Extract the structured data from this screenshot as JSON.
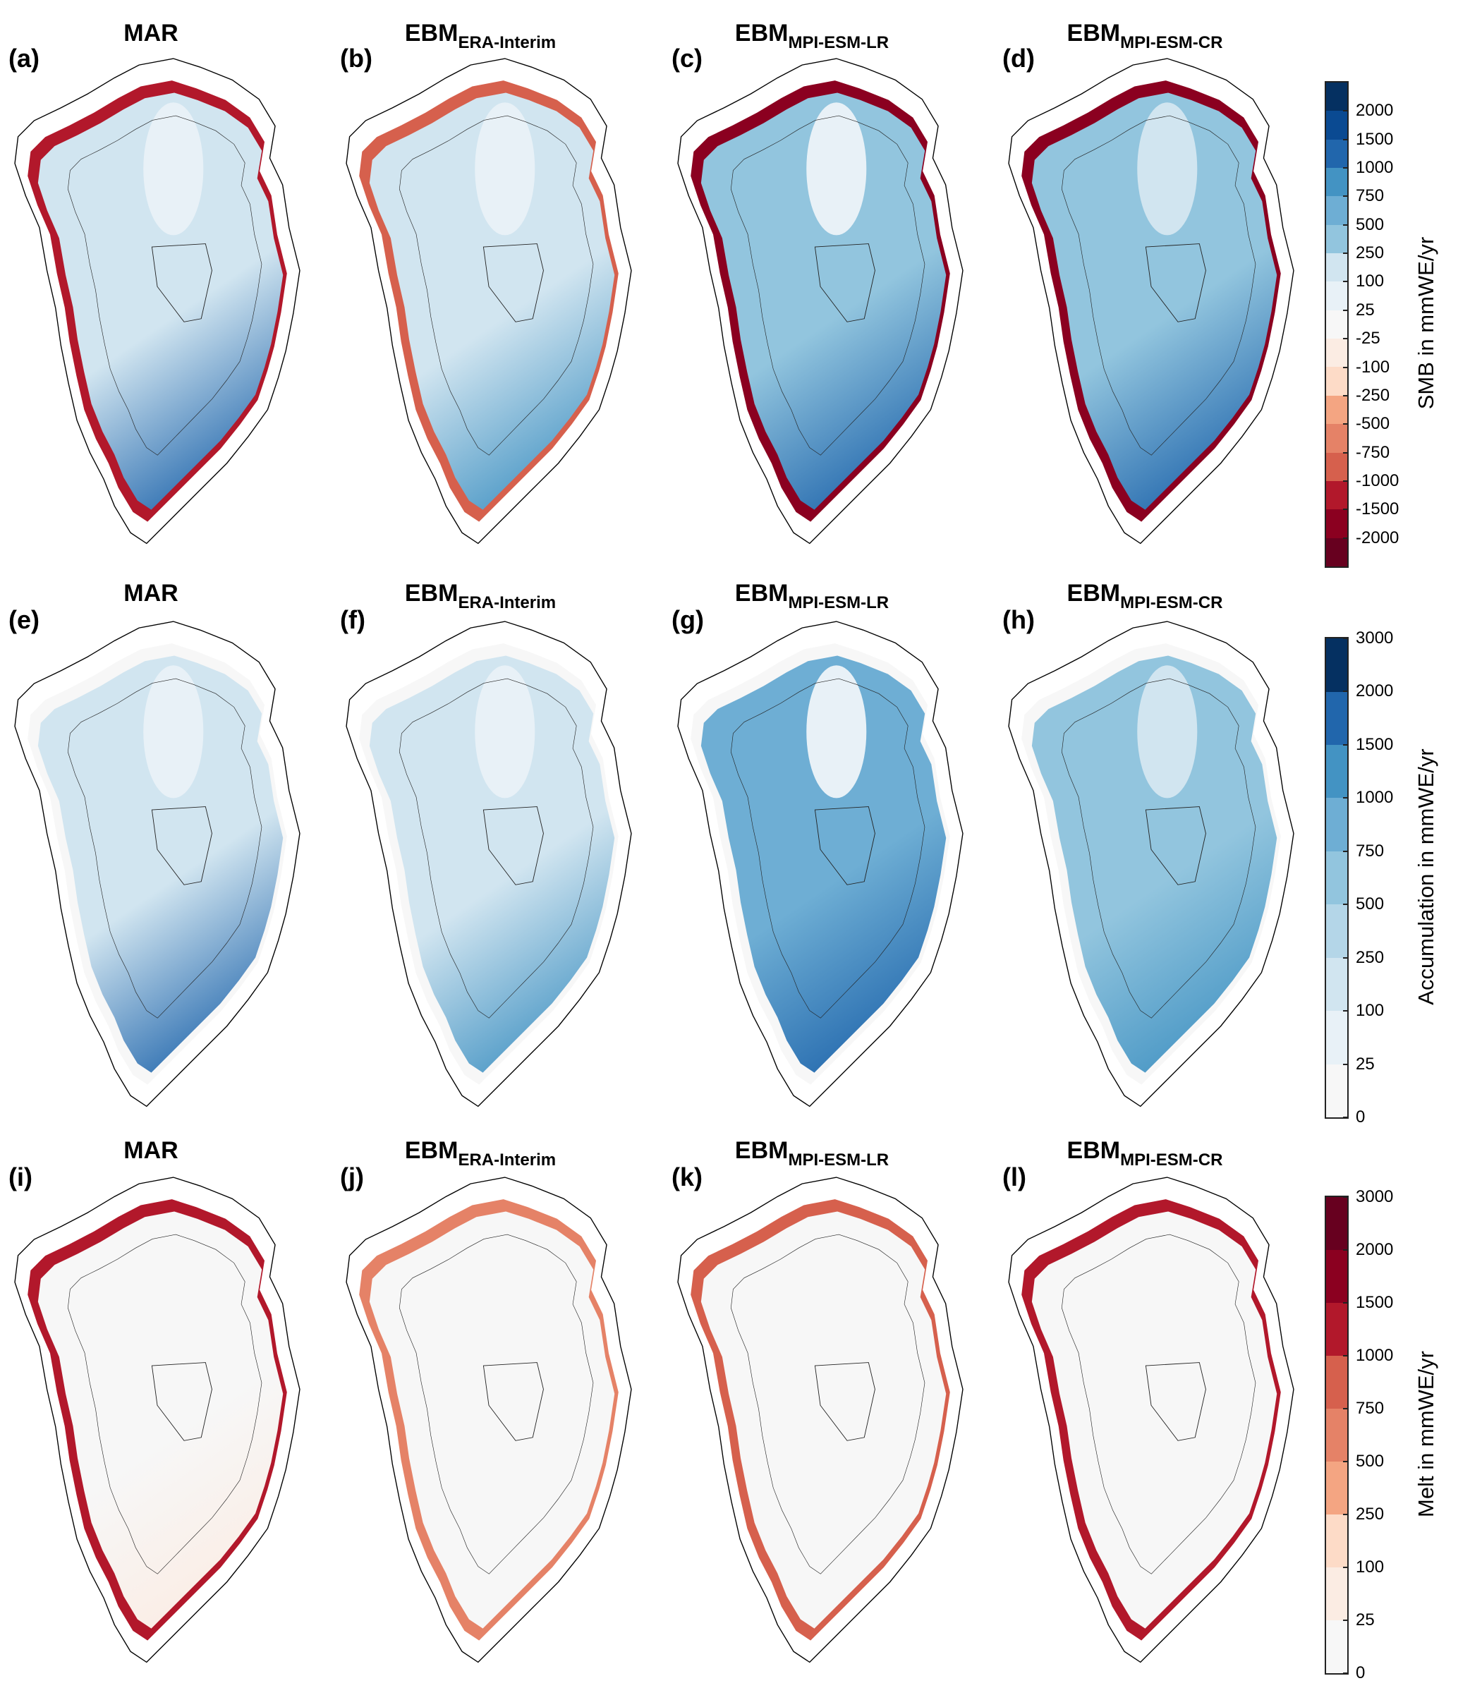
{
  "rows": [
    {
      "panels": [
        {
          "label": "(a)",
          "title": "MAR",
          "sub": "",
          "colors": {
            "edge": "#b2182b",
            "main_top": "#d1e5f0",
            "main_bottom": "#2166ac",
            "core": "#e8f1f7"
          }
        },
        {
          "label": "(b)",
          "title": "EBM",
          "sub": "ERA-Interim",
          "colors": {
            "edge": "#d6604d",
            "main_top": "#d1e5f0",
            "main_bottom": "#4393c3",
            "core": "#e8f1f7"
          }
        },
        {
          "label": "(c)",
          "title": "EBM",
          "sub": "MPI-ESM-LR",
          "colors": {
            "edge": "#8b0020",
            "main_top": "#92c5de",
            "main_bottom": "#2166ac",
            "core": "#e8f1f7"
          }
        },
        {
          "label": "(d)",
          "title": "EBM",
          "sub": "MPI-ESM-CR",
          "colors": {
            "edge": "#8b0020",
            "main_top": "#92c5de",
            "main_bottom": "#2166ac",
            "core": "#d1e5f0"
          }
        }
      ]
    },
    {
      "panels": [
        {
          "label": "(e)",
          "title": "MAR",
          "sub": "",
          "colors": {
            "edge": "#f7f7f7",
            "main_top": "#d1e5f0",
            "main_bottom": "#2166ac",
            "core": "#e8f1f7"
          }
        },
        {
          "label": "(f)",
          "title": "EBM",
          "sub": "ERA-Interim",
          "colors": {
            "edge": "#f7f7f7",
            "main_top": "#d1e5f0",
            "main_bottom": "#4393c3",
            "core": "#e8f1f7"
          }
        },
        {
          "label": "(g)",
          "title": "EBM",
          "sub": "MPI-ESM-LR",
          "colors": {
            "edge": "#f7f7f7",
            "main_top": "#6eaed4",
            "main_bottom": "#2166ac",
            "core": "#e8f1f7"
          }
        },
        {
          "label": "(h)",
          "title": "EBM",
          "sub": "MPI-ESM-CR",
          "colors": {
            "edge": "#f7f7f7",
            "main_top": "#92c5de",
            "main_bottom": "#4393c3",
            "core": "#d1e5f0"
          }
        }
      ]
    },
    {
      "panels": [
        {
          "label": "(i)",
          "title": "MAR",
          "sub": "",
          "colors": {
            "edge": "#b2182b",
            "main_top": "#f7f7f7",
            "main_bottom": "#fbece3",
            "core": "#f7f7f7"
          }
        },
        {
          "label": "(j)",
          "title": "EBM",
          "sub": "ERA-Interim",
          "colors": {
            "edge": "#e58267",
            "main_top": "#f7f7f7",
            "main_bottom": "#f7f7f7",
            "core": "#f7f7f7"
          }
        },
        {
          "label": "(k)",
          "title": "EBM",
          "sub": "MPI-ESM-LR",
          "colors": {
            "edge": "#d6604d",
            "main_top": "#f7f7f7",
            "main_bottom": "#f7f7f7",
            "core": "#f7f7f7"
          }
        },
        {
          "label": "(l)",
          "title": "EBM",
          "sub": "MPI-ESM-CR",
          "colors": {
            "edge": "#b2182b",
            "main_top": "#f7f7f7",
            "main_bottom": "#f7f7f7",
            "core": "#f7f7f7"
          }
        }
      ]
    }
  ],
  "colorbars": [
    {
      "label": "SMB in mmWE/yr",
      "tick_mode": "inner",
      "ticks": [
        "-2000",
        "-1500",
        "-1000",
        "-750",
        "-500",
        "-250",
        "-100",
        "-25",
        "25",
        "100",
        "250",
        "500",
        "750",
        "1000",
        "1500",
        "2000"
      ],
      "colors": [
        "#67001f",
        "#8b0020",
        "#b2182b",
        "#d6604d",
        "#e58267",
        "#f4a582",
        "#fddbc7",
        "#fbece3",
        "#f7f7f7",
        "#e8f1f7",
        "#d1e5f0",
        "#92c5de",
        "#6eaed4",
        "#4393c3",
        "#2166ac",
        "#0a4a92",
        "#053061"
      ]
    },
    {
      "label": "Accumulation in mmWE/yr",
      "tick_mode": "edges",
      "ticks": [
        "0",
        "25",
        "100",
        "250",
        "500",
        "750",
        "1000",
        "1500",
        "2000",
        "3000"
      ],
      "colors": [
        "#f7f7f7",
        "#e8f1f7",
        "#d1e5f0",
        "#b4d6e8",
        "#92c5de",
        "#6eaed4",
        "#4393c3",
        "#2166ac",
        "#053061"
      ]
    },
    {
      "label": "Melt in mmWE/yr",
      "tick_mode": "edges",
      "ticks": [
        "0",
        "25",
        "100",
        "250",
        "500",
        "750",
        "1000",
        "1500",
        "2000",
        "3000"
      ],
      "colors": [
        "#f7f7f7",
        "#fbece3",
        "#fddbc7",
        "#f4a582",
        "#e58267",
        "#d6604d",
        "#b2182b",
        "#8b0020",
        "#67001f"
      ]
    }
  ]
}
